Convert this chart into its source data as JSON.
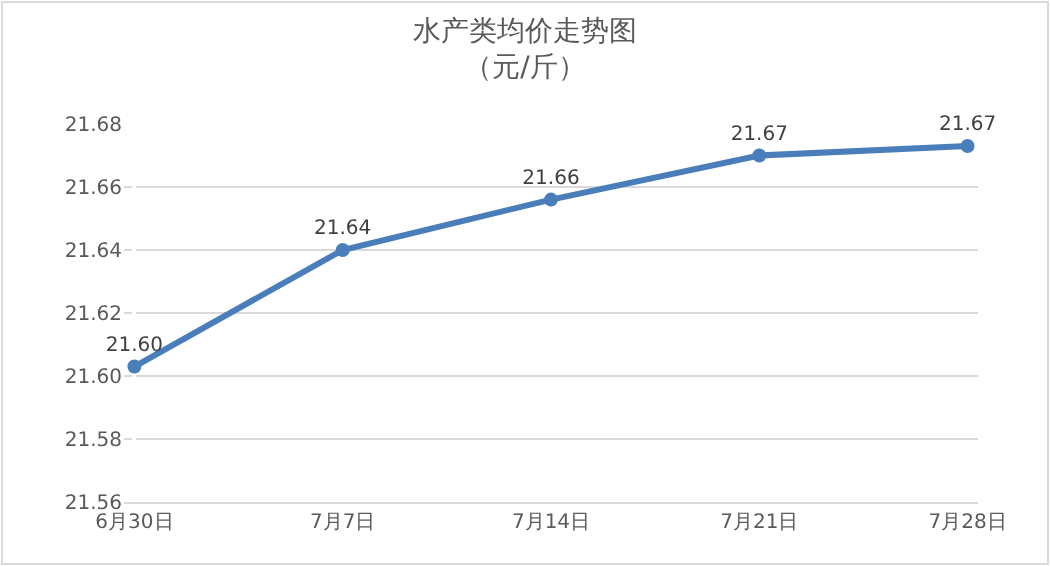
{
  "chart_data": {
    "type": "line",
    "title": "水产类均价走势图",
    "subtitle": "（元/斤）",
    "categories": [
      "6月30日",
      "7月7日",
      "7月14日",
      "7月21日",
      "7月28日"
    ],
    "series": [
      {
        "color": "#4a7ebb",
        "values": [
          21.603,
          21.64,
          21.656,
          21.67,
          21.673
        ],
        "value_labels": [
          "21.60",
          "21.64",
          "21.66",
          "21.67",
          "21.67"
        ]
      }
    ],
    "ylim": [
      21.56,
      21.68
    ],
    "yticks": [
      21.56,
      21.58,
      {
        "value": 21.6,
        "label": "21.60"
      },
      21.62,
      21.64,
      21.66,
      21.68
    ],
    "grid": "y",
    "marker": "circle",
    "line_style": "solid"
  }
}
